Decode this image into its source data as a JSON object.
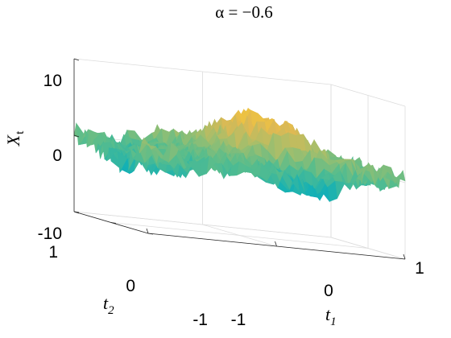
{
  "chart_data": {
    "type": "surface",
    "title": "α = −0.6",
    "xlabel": "t",
    "xlabel_sub": "1",
    "ylabel": "t",
    "ylabel_sub": "2",
    "zlabel": "X",
    "zlabel_sub": "t",
    "xlim": [
      -1,
      1
    ],
    "ylim": [
      -1,
      1
    ],
    "zlim": [
      -10,
      10
    ],
    "x_ticks": [
      "-1",
      "0",
      "1"
    ],
    "y_ticks": [
      "-1",
      "0",
      "1"
    ],
    "z_ticks": [
      "-10",
      "0",
      "10"
    ],
    "colormap": "parula",
    "grid": true,
    "surface": {
      "description_note": "",
      "z_range_estimate": [
        -8,
        7
      ]
    }
  }
}
